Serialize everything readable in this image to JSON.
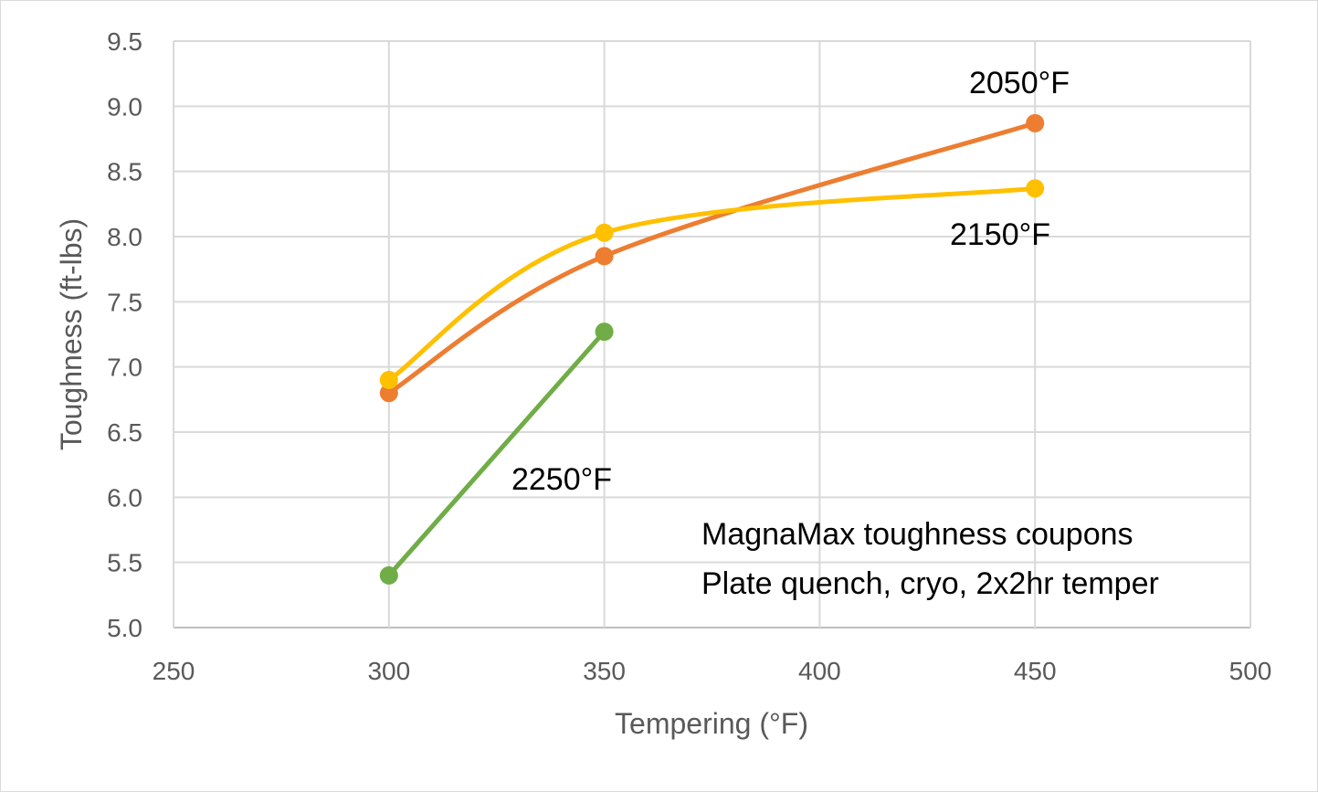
{
  "chart_data": {
    "type": "line",
    "xlabel": "Tempering (°F)",
    "ylabel": "Toughness (ft-lbs)",
    "xlim": [
      250,
      500
    ],
    "ylim": [
      5.0,
      9.5
    ],
    "x_ticks": [
      "250",
      "300",
      "350",
      "400",
      "450",
      "500"
    ],
    "y_ticks": [
      "5.0",
      "5.5",
      "6.0",
      "6.5",
      "7.0",
      "7.5",
      "8.0",
      "8.5",
      "9.0",
      "9.5"
    ],
    "grid": true,
    "smoothed": true,
    "series": [
      {
        "name": "2050°F",
        "color": "#ED7D31",
        "points": [
          [
            300,
            6.8
          ],
          [
            350,
            7.85
          ],
          [
            450,
            8.87
          ]
        ]
      },
      {
        "name": "2150°F",
        "color": "#FFC000",
        "points": [
          [
            300,
            6.9
          ],
          [
            350,
            8.03
          ],
          [
            450,
            8.37
          ]
        ]
      },
      {
        "name": "2250°F",
        "color": "#70AD47",
        "points": [
          [
            300,
            5.4
          ],
          [
            350,
            7.27
          ]
        ]
      }
    ],
    "annotations": [
      "MagnaMax toughness coupons",
      "Plate quench, cryo, 2x2hr temper"
    ]
  }
}
